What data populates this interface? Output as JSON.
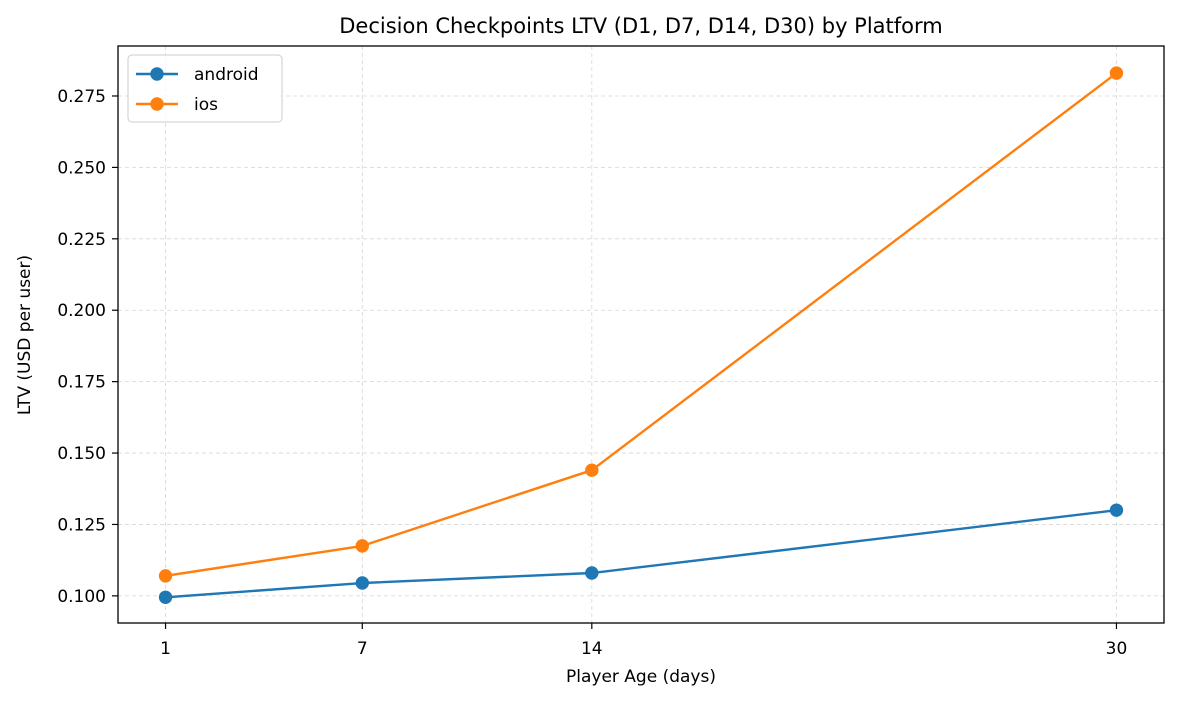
{
  "chart_data": {
    "type": "line",
    "title": "Decision Checkpoints LTV (D1, D7, D14, D30) by Platform",
    "xlabel": "Player Age (days)",
    "ylabel": "LTV (USD per user)",
    "x": [
      1,
      7,
      14,
      30
    ],
    "x_tick_labels": [
      "1",
      "7",
      "14",
      "30"
    ],
    "y_ticks": [
      0.1,
      0.125,
      0.15,
      0.175,
      0.2,
      0.225,
      0.25,
      0.275
    ],
    "y_tick_labels": [
      "0.100",
      "0.125",
      "0.150",
      "0.175",
      "0.200",
      "0.225",
      "0.250",
      "0.275"
    ],
    "xlim": [
      -0.45,
      31.45
    ],
    "ylim": [
      0.0905,
      0.2925
    ],
    "grid": true,
    "legend_position": "top-left",
    "series": [
      {
        "name": "android",
        "color": "#1f77b4",
        "values": [
          0.0995,
          0.1045,
          0.108,
          0.13
        ]
      },
      {
        "name": "ios",
        "color": "#ff7f0e",
        "values": [
          0.107,
          0.1175,
          0.144,
          0.283
        ]
      }
    ]
  }
}
